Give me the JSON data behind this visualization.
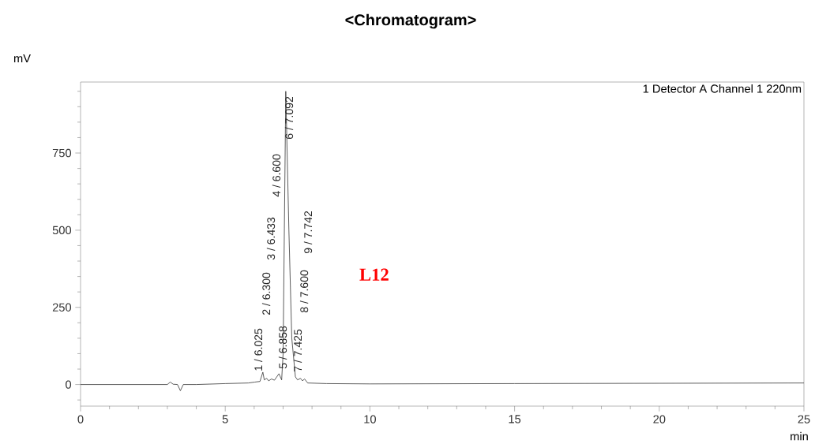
{
  "chart_data": {
    "type": "line",
    "title": "<Chromatogram>",
    "xlabel": "min",
    "ylabel": "mV",
    "x": [
      0,
      3.0,
      3.1,
      3.2,
      3.35,
      3.45,
      3.55,
      4,
      5,
      5.8,
      6.025,
      6.2,
      6.3,
      6.35,
      6.433,
      6.5,
      6.6,
      6.7,
      6.858,
      6.95,
      7.0,
      7.092,
      7.2,
      7.3,
      7.425,
      7.5,
      7.6,
      7.67,
      7.742,
      7.85,
      8.5,
      10,
      15,
      20,
      25
    ],
    "series": [
      {
        "color": "#333333",
        "values": [
          0,
          0,
          8,
          1,
          0,
          -20,
          0,
          0,
          3,
          5,
          8,
          10,
          40,
          15,
          20,
          12,
          18,
          14,
          35,
          15,
          100,
          950,
          500,
          150,
          25,
          15,
          20,
          12,
          18,
          5,
          3,
          2,
          3,
          4,
          5
        ]
      }
    ],
    "xlim": [
      0,
      25
    ],
    "ylim": [
      -70,
      980
    ],
    "xticks": [
      0,
      {
        "value": 1,
        "label": null
      },
      {
        "value": 2,
        "label": null
      },
      {
        "value": 3,
        "label": null
      },
      {
        "value": 4,
        "label": null
      },
      5,
      {
        "value": 6,
        "label": null
      },
      {
        "value": 7,
        "label": null
      },
      {
        "value": 8,
        "label": null
      },
      {
        "value": 9,
        "label": null
      },
      10,
      {
        "value": 11,
        "label": null
      },
      {
        "value": 12,
        "label": null
      },
      {
        "value": 13,
        "label": null
      },
      {
        "value": 14,
        "label": null
      },
      15,
      {
        "value": 16,
        "label": null
      },
      {
        "value": 17,
        "label": null
      },
      {
        "value": 18,
        "label": null
      },
      {
        "value": 19,
        "label": null
      },
      20,
      {
        "value": 21,
        "label": null
      },
      {
        "value": 22,
        "label": null
      },
      {
        "value": 23,
        "label": null
      },
      {
        "value": 24,
        "label": null
      },
      25
    ],
    "yticks": [
      {
        "value": -50,
        "label": null
      },
      0,
      {
        "value": 50,
        "label": null
      },
      {
        "value": 100,
        "label": null
      },
      {
        "value": 150,
        "label": null
      },
      {
        "value": 200,
        "label": null
      },
      250,
      {
        "value": 300,
        "label": null
      },
      {
        "value": 350,
        "label": null
      },
      {
        "value": 400,
        "label": null
      },
      {
        "value": 450,
        "label": null
      },
      500,
      {
        "value": 550,
        "label": null
      },
      {
        "value": 600,
        "label": null
      },
      {
        "value": 650,
        "label": null
      },
      {
        "value": 700,
        "label": null
      },
      750,
      {
        "value": 800,
        "label": null
      },
      {
        "value": 850,
        "label": null
      },
      {
        "value": 900,
        "label": null
      },
      {
        "value": 950,
        "label": null
      }
    ],
    "grid": false,
    "marker": "none",
    "line_style": "solid",
    "annotations": [
      "1 Detector A Channel 1 220nm",
      "L12",
      "1 / 6.025",
      "2 / 6.300",
      "3 / 6.433",
      "4 / 6.600",
      "5 / 6.858",
      "6 / 7.092",
      "7 / 7.425",
      "8 / 7.600",
      "9 / 7.742"
    ]
  }
}
